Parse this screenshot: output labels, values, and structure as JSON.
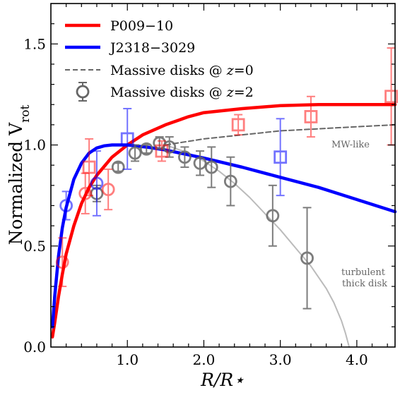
{
  "chart_data": {
    "type": "line",
    "xlabel": "R/R⋆",
    "ylabel_main": "Normalized V",
    "ylabel_sub": "rot",
    "xlim": [
      0,
      4.5
    ],
    "ylim": [
      0,
      1.7
    ],
    "x_ticks": [
      1.0,
      2.0,
      3.0,
      4.0
    ],
    "x_tick_labels": [
      "1.0",
      "2.0",
      "3.0",
      "4.0"
    ],
    "y_ticks": [
      0.0,
      0.5,
      1.0,
      1.5
    ],
    "y_tick_labels": [
      "0.0",
      "0.5",
      "1.0",
      "1.5"
    ],
    "legend_position": "top-left",
    "legend": [
      {
        "label": "P009−10",
        "style": "line",
        "color": "#ff0000"
      },
      {
        "label": "J2318−3029",
        "style": "line",
        "color": "#0000ff"
      },
      {
        "label": "Massive disks @ z=0",
        "label_prefix": "Massive disks @ ",
        "label_var": "z",
        "label_suffix": "=0",
        "style": "dashed",
        "color": "#666666"
      },
      {
        "label": "Massive disks @ z=2",
        "label_prefix": "Massive disks @ ",
        "label_var": "z",
        "label_suffix": "=2",
        "style": "marker",
        "color": "#666666"
      }
    ],
    "annotations": {
      "mw_like": "MW-like",
      "turbulent_line1": "turbulent",
      "turbulent_line2": "thick disk"
    },
    "series": [
      {
        "name": "P009−10",
        "color": "#ff0000",
        "x": [
          0.02,
          0.05,
          0.1,
          0.15,
          0.2,
          0.3,
          0.4,
          0.5,
          0.6,
          0.8,
          1.0,
          1.2,
          1.5,
          1.8,
          2.0,
          2.5,
          3.0,
          3.5,
          4.0,
          4.5
        ],
        "y": [
          0.05,
          0.12,
          0.25,
          0.36,
          0.46,
          0.6,
          0.71,
          0.79,
          0.85,
          0.94,
          1.0,
          1.05,
          1.1,
          1.14,
          1.16,
          1.18,
          1.195,
          1.2,
          1.2,
          1.2
        ]
      },
      {
        "name": "J2318−3029",
        "color": "#0000ff",
        "x": [
          0.02,
          0.05,
          0.1,
          0.15,
          0.2,
          0.3,
          0.4,
          0.5,
          0.6,
          0.7,
          0.8,
          0.9,
          1.0,
          1.1,
          1.3,
          1.5,
          2.0,
          2.5,
          3.0,
          3.5,
          4.0,
          4.5
        ],
        "y": [
          0.1,
          0.25,
          0.45,
          0.59,
          0.69,
          0.83,
          0.91,
          0.96,
          0.985,
          0.996,
          1.0,
          1.0,
          1.0,
          0.996,
          0.987,
          0.975,
          0.935,
          0.89,
          0.84,
          0.79,
          0.73,
          0.67
        ]
      },
      {
        "name": "Massive disks @ z=0",
        "color": "#666666",
        "x": [
          1.5,
          2.0,
          2.5,
          3.0,
          3.5,
          4.0,
          4.5
        ],
        "y": [
          1.0,
          1.03,
          1.05,
          1.07,
          1.08,
          1.09,
          1.1
        ]
      },
      {
        "name": "turbulent thick disk",
        "color": "#bbbbbb",
        "x": [
          1.5,
          1.8,
          2.0,
          2.2,
          2.4,
          2.6,
          2.8,
          3.0,
          3.2,
          3.4,
          3.6,
          3.7,
          3.8,
          3.85,
          3.9
        ],
        "y": [
          1.0,
          0.96,
          0.92,
          0.87,
          0.81,
          0.74,
          0.66,
          0.58,
          0.49,
          0.4,
          0.29,
          0.22,
          0.13,
          0.07,
          0.0
        ]
      }
    ],
    "points": {
      "red_circles": [
        {
          "x": 0.15,
          "y": 0.42,
          "yerr_lo": 0.12,
          "yerr_hi": 0.12
        },
        {
          "x": 0.45,
          "y": 0.76,
          "yerr_lo": 0.1,
          "yerr_hi": 0.1
        },
        {
          "x": 0.75,
          "y": 0.78,
          "yerr_lo": 0.1,
          "yerr_hi": 0.1
        }
      ],
      "red_squares": [
        {
          "x": 0.5,
          "y": 0.89,
          "yerr_lo": 0.14,
          "yerr_hi": 0.14
        },
        {
          "x": 1.45,
          "y": 0.97,
          "yerr_lo": 0.05,
          "yerr_hi": 0.05
        },
        {
          "x": 2.45,
          "y": 1.1,
          "yerr_lo": 0.05,
          "yerr_hi": 0.05
        },
        {
          "x": 3.4,
          "y": 1.14,
          "yerr_lo": 0.1,
          "yerr_hi": 0.1
        },
        {
          "x": 4.45,
          "y": 1.24,
          "yerr_lo": 0.24,
          "yerr_hi": 0.24
        }
      ],
      "blue_circles": [
        {
          "x": 0.2,
          "y": 0.7,
          "yerr_lo": 0.07,
          "yerr_hi": 0.07
        },
        {
          "x": 0.6,
          "y": 0.81,
          "yerr_lo": 0.16,
          "yerr_hi": 0.16
        }
      ],
      "blue_squares": [
        {
          "x": 1.0,
          "y": 1.03,
          "yerr_lo": 0.15,
          "yerr_hi": 0.15
        },
        {
          "x": 3.0,
          "y": 0.94,
          "yerr_lo": 0.19,
          "yerr_hi": 0.19
        }
      ],
      "gray_circles": [
        {
          "x": 0.6,
          "y": 0.76,
          "yerr_lo": 0.04,
          "yerr_hi": 0.04
        },
        {
          "x": 0.88,
          "y": 0.89,
          "yerr_lo": 0.02,
          "yerr_hi": 0.02
        },
        {
          "x": 1.1,
          "y": 0.96,
          "yerr_lo": 0.04,
          "yerr_hi": 0.04
        },
        {
          "x": 1.25,
          "y": 0.98,
          "yerr_lo": 0.02,
          "yerr_hi": 0.02
        },
        {
          "x": 1.42,
          "y": 1.01,
          "yerr_lo": 0.03,
          "yerr_hi": 0.03
        },
        {
          "x": 1.55,
          "y": 0.99,
          "yerr_lo": 0.05,
          "yerr_hi": 0.05
        },
        {
          "x": 1.75,
          "y": 0.94,
          "yerr_lo": 0.05,
          "yerr_hi": 0.05
        },
        {
          "x": 1.95,
          "y": 0.91,
          "yerr_lo": 0.06,
          "yerr_hi": 0.06
        },
        {
          "x": 2.1,
          "y": 0.89,
          "yerr_lo": 0.1,
          "yerr_hi": 0.1
        },
        {
          "x": 2.35,
          "y": 0.82,
          "yerr_lo": 0.12,
          "yerr_hi": 0.12
        },
        {
          "x": 2.9,
          "y": 0.65,
          "yerr_lo": 0.15,
          "yerr_hi": 0.15
        },
        {
          "x": 3.35,
          "y": 0.44,
          "yerr_lo": 0.25,
          "yerr_hi": 0.25
        }
      ]
    }
  }
}
